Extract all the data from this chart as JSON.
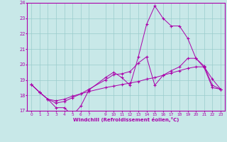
{
  "xlabel": "Windchill (Refroidissement éolien,°C)",
  "xlim": [
    -0.5,
    23.5
  ],
  "ylim": [
    17,
    24
  ],
  "yticks": [
    17,
    18,
    19,
    20,
    21,
    22,
    23,
    24
  ],
  "xticks": [
    0,
    1,
    2,
    3,
    4,
    5,
    6,
    7,
    9,
    10,
    11,
    12,
    13,
    14,
    15,
    16,
    17,
    18,
    19,
    20,
    21,
    22,
    23
  ],
  "xtick_labels": [
    "0",
    "1",
    "2",
    "3",
    "4",
    "5",
    "6",
    "7",
    "9",
    "10",
    "11",
    "12",
    "13",
    "14",
    "15",
    "16",
    "17",
    "18",
    "19",
    "20",
    "21",
    "22",
    "23"
  ],
  "bg_color": "#c8e8e8",
  "line_color": "#aa00aa",
  "grid_color": "#99cccc",
  "lines": [
    {
      "x": [
        0,
        1,
        2,
        3,
        4,
        5,
        6,
        7,
        9,
        10,
        11,
        12,
        13,
        14,
        15,
        16,
        17,
        18,
        19,
        20,
        21,
        22,
        23
      ],
      "y": [
        18.7,
        18.2,
        17.75,
        17.2,
        17.2,
        16.7,
        17.3,
        18.35,
        19.15,
        19.5,
        19.15,
        18.65,
        20.5,
        22.6,
        23.8,
        23.0,
        22.5,
        22.5,
        21.7,
        20.4,
        19.8,
        18.5,
        18.4
      ]
    },
    {
      "x": [
        0,
        1,
        2,
        3,
        4,
        5,
        6,
        7,
        9,
        10,
        11,
        12,
        13,
        14,
        15,
        16,
        17,
        18,
        19,
        20,
        21,
        22,
        23
      ],
      "y": [
        18.7,
        18.2,
        17.75,
        17.5,
        17.6,
        17.85,
        18.1,
        18.4,
        19.0,
        19.35,
        19.4,
        19.55,
        20.1,
        20.5,
        18.65,
        19.3,
        19.6,
        19.85,
        20.4,
        20.4,
        19.9,
        18.65,
        18.4
      ]
    },
    {
      "x": [
        0,
        1,
        2,
        3,
        4,
        5,
        6,
        7,
        9,
        10,
        11,
        12,
        13,
        14,
        15,
        16,
        17,
        18,
        19,
        20,
        21,
        22,
        23
      ],
      "y": [
        18.7,
        18.2,
        17.75,
        17.65,
        17.75,
        17.95,
        18.1,
        18.25,
        18.5,
        18.6,
        18.7,
        18.8,
        18.9,
        19.05,
        19.15,
        19.3,
        19.45,
        19.6,
        19.75,
        19.85,
        19.85,
        19.05,
        18.4
      ]
    }
  ]
}
